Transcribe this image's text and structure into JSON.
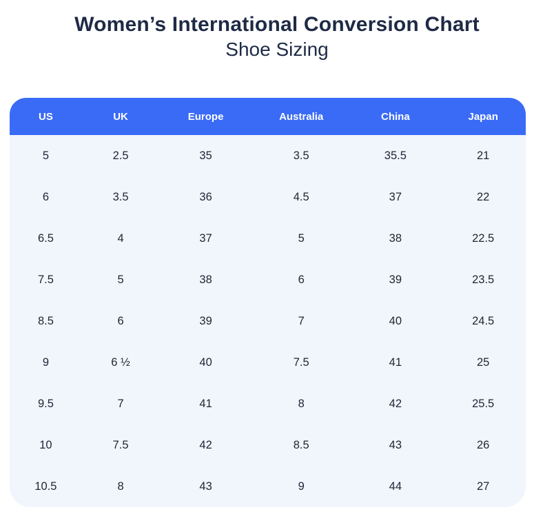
{
  "page": {
    "title": "Women’s International Conversion Chart",
    "subtitle": "Shoe Sizing"
  },
  "colors": {
    "header_bg": "#3a6bf7",
    "header_text": "#ffffff",
    "body_bg": "#f1f5fc",
    "title_text": "#1e2a45",
    "cell_text": "#1d2533"
  },
  "chart_data": {
    "type": "table",
    "title": "Women’s International Conversion Chart",
    "subtitle": "Shoe Sizing",
    "columns": [
      "US",
      "UK",
      "Europe",
      "Australia",
      "China",
      "Japan"
    ],
    "rows": [
      [
        "5",
        "2.5",
        "35",
        "3.5",
        "35.5",
        "21"
      ],
      [
        "6",
        "3.5",
        "36",
        "4.5",
        "37",
        "22"
      ],
      [
        "6.5",
        "4",
        "37",
        "5",
        "38",
        "22.5"
      ],
      [
        "7.5",
        "5",
        "38",
        "6",
        "39",
        "23.5"
      ],
      [
        "8.5",
        "6",
        "39",
        "7",
        "40",
        "24.5"
      ],
      [
        "9",
        "6 ½",
        "40",
        "7.5",
        "41",
        "25"
      ],
      [
        "9.5",
        "7",
        "41",
        "8",
        "42",
        "25.5"
      ],
      [
        "10",
        "7.5",
        "42",
        "8.5",
        "43",
        "26"
      ],
      [
        "10.5",
        "8",
        "43",
        "9",
        "44",
        "27"
      ]
    ],
    "layout": {
      "grid": false,
      "header_position": "top",
      "column_alignment": "center"
    }
  }
}
